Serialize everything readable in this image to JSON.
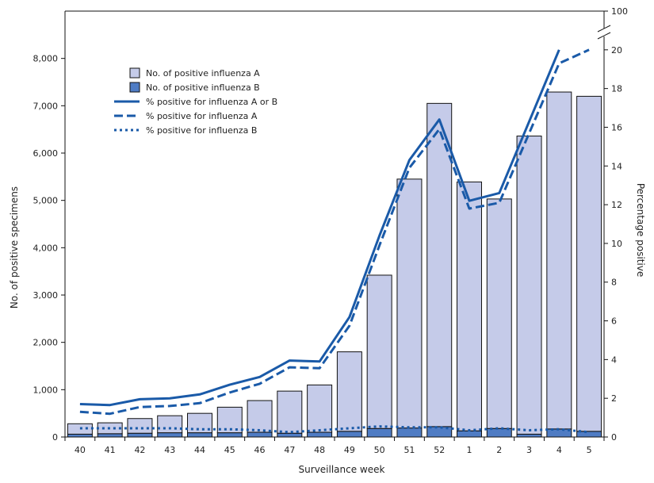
{
  "chart_data": {
    "type": "bar",
    "title": "",
    "xlabel": "Surveillance week",
    "ylabel": "No. of positive specimens",
    "y2label": "Percentage positive",
    "categories": [
      "40",
      "41",
      "42",
      "43",
      "44",
      "45",
      "46",
      "47",
      "48",
      "49",
      "50",
      "51",
      "52",
      "1",
      "2",
      "3",
      "4",
      "5"
    ],
    "ylim": [
      0,
      9000
    ],
    "yticks": [
      0,
      1000,
      2000,
      3000,
      4000,
      5000,
      6000,
      7000,
      8000
    ],
    "ytick_labels": [
      "0",
      "1,000",
      "2,000",
      "3,000",
      "4,000",
      "5,000",
      "6,000",
      "7,000",
      "8,000"
    ],
    "y2lim": [
      0,
      22
    ],
    "y2ticks": [
      0,
      2,
      4,
      6,
      8,
      10,
      12,
      14,
      16,
      18,
      20
    ],
    "y2ticks_labels": [
      "0",
      "2",
      "4",
      "6",
      "8",
      "10",
      "12",
      "14",
      "16",
      "18",
      "20"
    ],
    "y2break_label": "100",
    "stacked": true,
    "bar_series": [
      {
        "name": "No. of positive influenza A",
        "color": "#c5cbe9",
        "values": [
          220,
          230,
          310,
          360,
          410,
          540,
          670,
          890,
          1000,
          1680,
          3240,
          5260,
          6830,
          5260,
          4850,
          6300,
          7120,
          7080
        ]
      },
      {
        "name": "No. of positive influenza B",
        "color": "#4f7cc4",
        "values": [
          60,
          70,
          80,
          90,
          90,
          90,
          100,
          80,
          100,
          120,
          180,
          190,
          220,
          130,
          180,
          60,
          170,
          120
        ]
      }
    ],
    "line_series": [
      {
        "name": "% positive for influenza A or B",
        "style": "solid",
        "color": "#1a5aa8",
        "values": [
          1.7,
          1.65,
          1.95,
          2.0,
          2.2,
          2.7,
          3.1,
          3.95,
          3.9,
          6.2,
          10.4,
          14.3,
          16.4,
          12.2,
          12.6,
          16.3,
          20.0,
          null
        ]
      },
      {
        "name": "% positive for influenza A",
        "style": "dashed",
        "color": "#1a5aa8",
        "values": [
          1.3,
          1.2,
          1.55,
          1.6,
          1.75,
          2.3,
          2.75,
          3.6,
          3.55,
          5.75,
          9.9,
          13.9,
          15.9,
          11.8,
          12.1,
          15.7,
          19.3,
          20.0
        ]
      },
      {
        "name": "% positive for influenza B",
        "style": "dotted",
        "color": "#1a5aa8",
        "values": [
          0.45,
          0.45,
          0.45,
          0.45,
          0.4,
          0.4,
          0.35,
          0.25,
          0.35,
          0.45,
          0.55,
          0.5,
          0.5,
          0.35,
          0.45,
          0.35,
          0.4,
          0.25
        ]
      }
    ],
    "legend_position": "top-left",
    "grid": false
  }
}
